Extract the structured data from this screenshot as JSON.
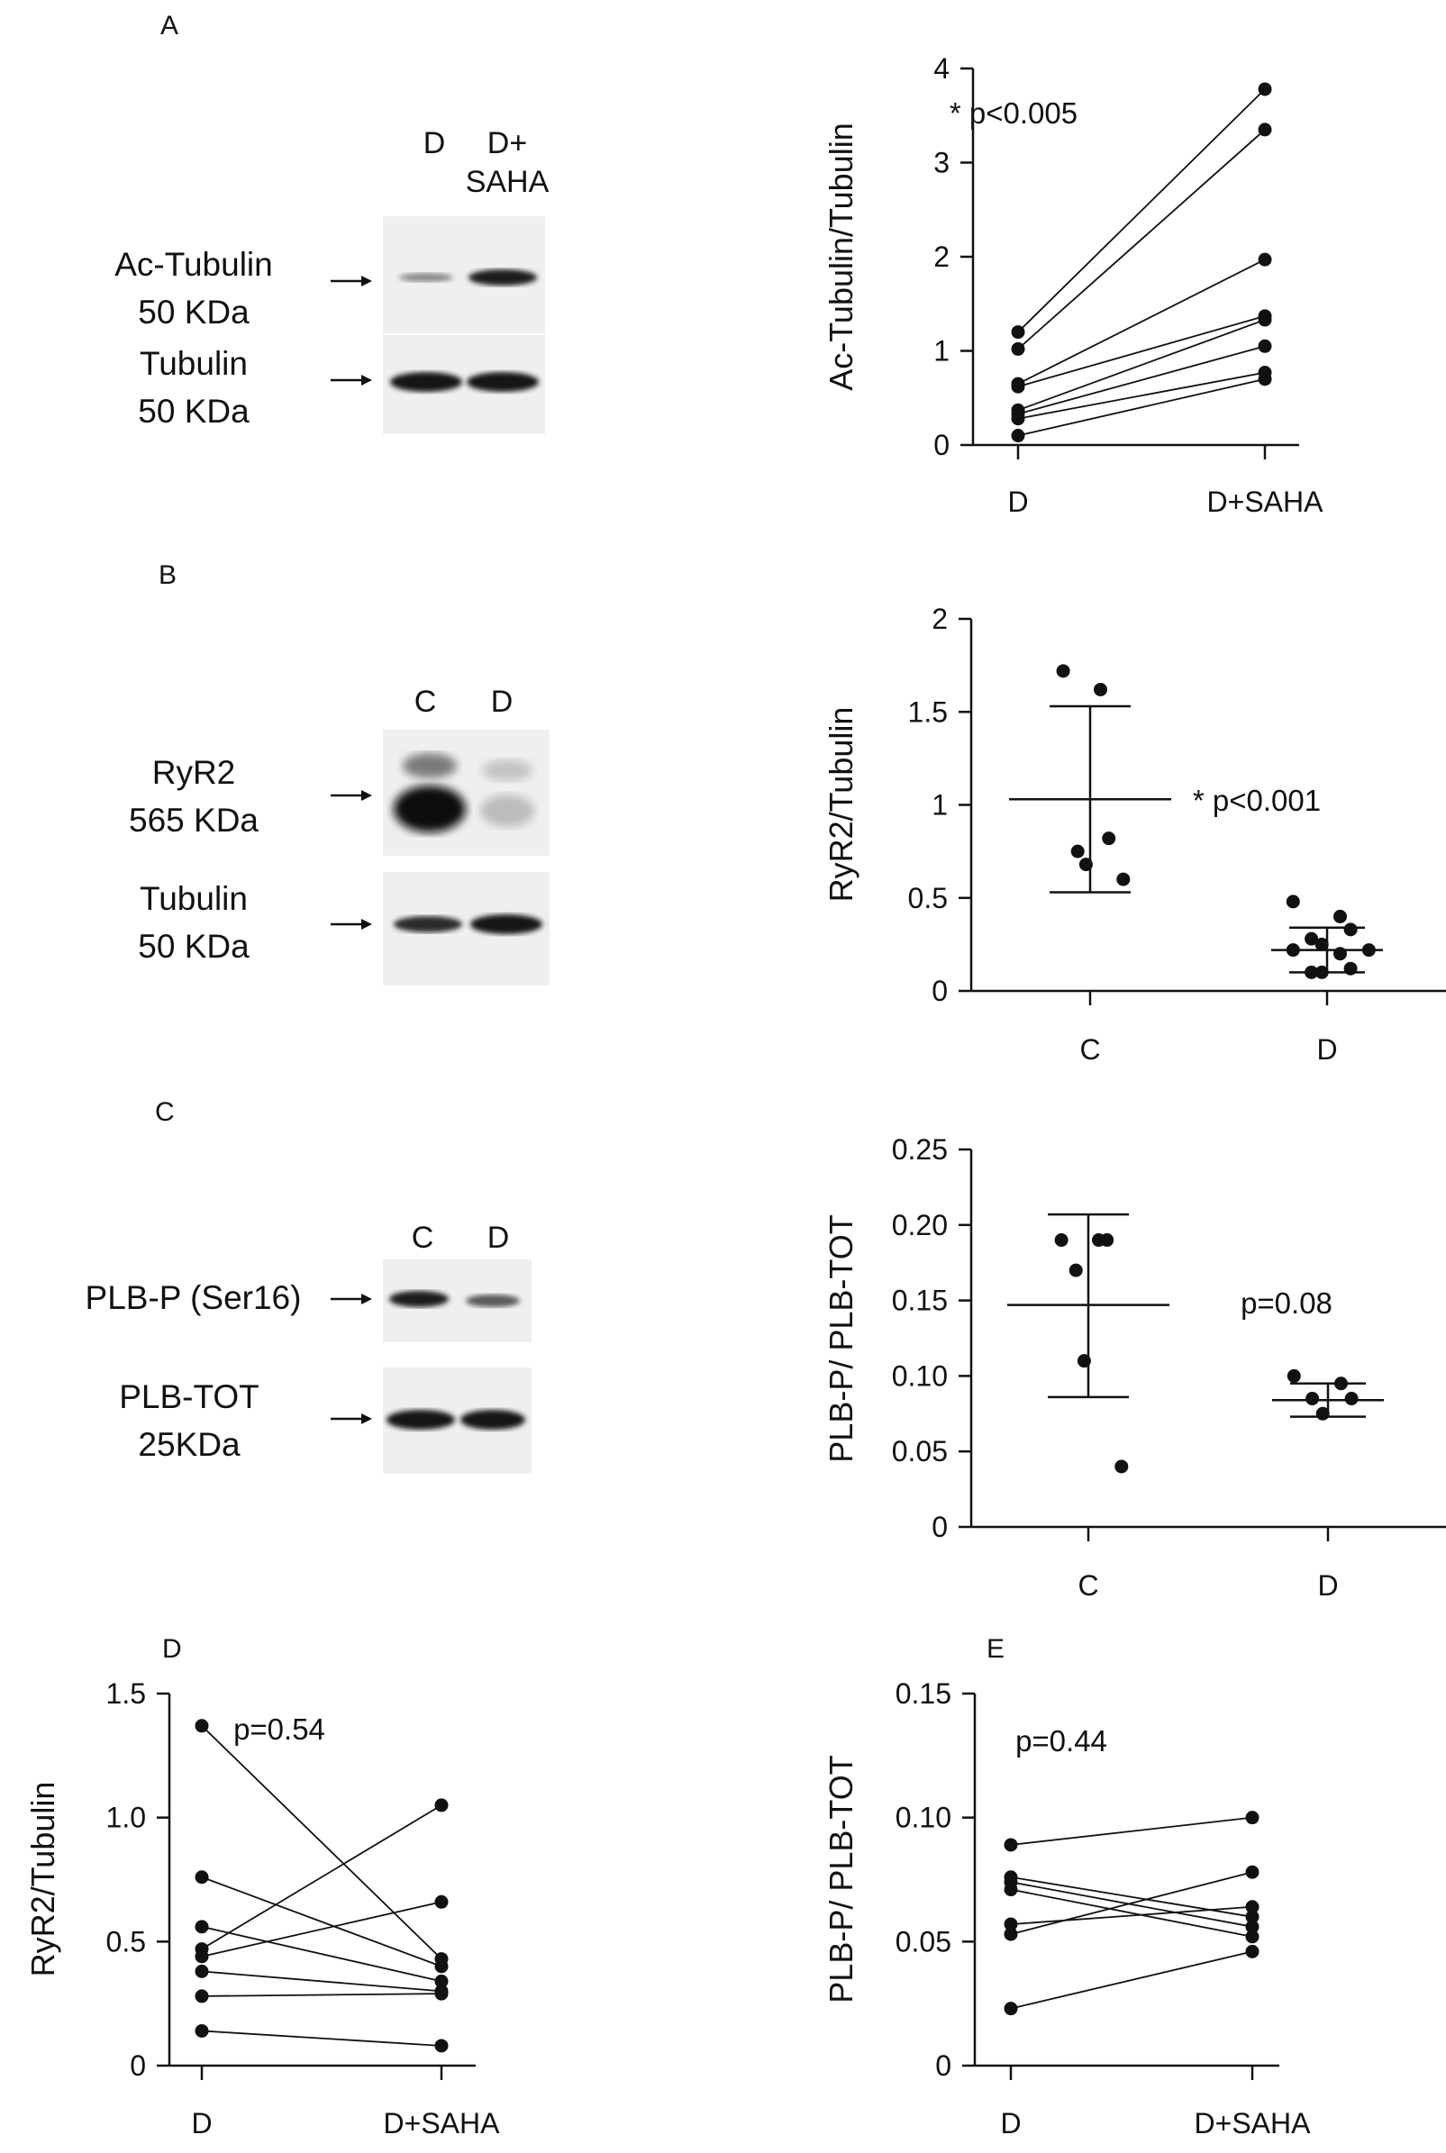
{
  "figure": {
    "panels": {
      "A": {
        "letter": "A",
        "blot": {
          "lanes": [
            "D",
            "D+\nSAHA"
          ],
          "bands": [
            {
              "label": "Ac-Tubulin\n50 KDa"
            },
            {
              "label": "Tubulin\n50 KDa"
            }
          ]
        }
      },
      "B": {
        "letter": "B",
        "blot": {
          "lanes": [
            "C",
            "D"
          ],
          "bands": [
            {
              "label": "RyR2\n565 KDa"
            },
            {
              "label": "Tubulin\n50 KDa"
            }
          ]
        }
      },
      "C": {
        "letter": "C",
        "blot": {
          "lanes": [
            "C",
            "D"
          ],
          "bands": [
            {
              "label": "PLB-P (Ser16)"
            },
            {
              "label": "PLB-TOT\n25KDa"
            }
          ]
        }
      },
      "D": {
        "letter": "D"
      },
      "E": {
        "letter": "E"
      }
    }
  },
  "chart_data": [
    {
      "id": "A",
      "type": "scatter",
      "style": "paired",
      "title": "",
      "ylabel": "Ac-Tubulin/Tubulin",
      "xlabel": "",
      "categories": [
        "D",
        "D+SAHA"
      ],
      "ylim": [
        0,
        4
      ],
      "yticks": [
        0,
        1,
        2,
        3,
        4
      ],
      "ytick_labels": [
        "0",
        "1",
        "2",
        "3",
        "4"
      ],
      "annotation": "* p<0.005",
      "pairs": [
        [
          1.2,
          3.78
        ],
        [
          1.02,
          3.35
        ],
        [
          0.65,
          1.97
        ],
        [
          0.62,
          1.37
        ],
        [
          0.37,
          1.33
        ],
        [
          0.33,
          1.05
        ],
        [
          0.28,
          0.77
        ],
        [
          0.1,
          0.7
        ]
      ]
    },
    {
      "id": "B",
      "type": "scatter",
      "style": "mean-sd",
      "title": "",
      "ylabel": "RyR2/Tubulin",
      "xlabel": "",
      "categories": [
        "C",
        "D"
      ],
      "ylim": [
        0,
        2
      ],
      "yticks": [
        0,
        0.5,
        1,
        1.5,
        2
      ],
      "ytick_labels": [
        "0",
        "0.5",
        "1",
        "1.5",
        "2"
      ],
      "annotation": "* p<0.001",
      "groups": [
        {
          "name": "C",
          "values": [
            1.72,
            1.62,
            0.82,
            0.75,
            0.68,
            0.6
          ],
          "mean": 1.03,
          "sd_low": 0.53,
          "sd_high": 1.53
        },
        {
          "name": "D",
          "values": [
            0.48,
            0.4,
            0.33,
            0.28,
            0.25,
            0.22,
            0.22,
            0.2,
            0.12,
            0.1,
            0.1
          ],
          "mean": 0.22,
          "sd_low": 0.1,
          "sd_high": 0.34
        }
      ]
    },
    {
      "id": "C",
      "type": "scatter",
      "style": "mean-sd",
      "title": "",
      "ylabel": "PLB-P/ PLB-TOT",
      "xlabel": "",
      "categories": [
        "C",
        "D"
      ],
      "ylim": [
        0,
        0.25
      ],
      "yticks": [
        0,
        0.05,
        0.1,
        0.15,
        0.2,
        0.25
      ],
      "ytick_labels": [
        "0",
        "0.05",
        "0.10",
        "0.15",
        "0.20",
        "0.25"
      ],
      "annotation": "p=0.08",
      "groups": [
        {
          "name": "C",
          "values": [
            0.19,
            0.19,
            0.19,
            0.17,
            0.11,
            0.04
          ],
          "mean": 0.147,
          "sd_low": 0.086,
          "sd_high": 0.207
        },
        {
          "name": "D",
          "values": [
            0.1,
            0.095,
            0.085,
            0.085,
            0.075
          ],
          "mean": 0.084,
          "sd_low": 0.073,
          "sd_high": 0.095
        }
      ]
    },
    {
      "id": "D",
      "type": "scatter",
      "style": "paired",
      "title": "",
      "ylabel": "RyR2/Tubulin",
      "xlabel": "",
      "categories": [
        "D",
        "D+SAHA"
      ],
      "ylim": [
        0,
        1.5
      ],
      "yticks": [
        0,
        0.5,
        1.0,
        1.5
      ],
      "ytick_labels": [
        "0",
        "0.5",
        "1.0",
        "1.5"
      ],
      "annotation": "p=0.54",
      "pairs": [
        [
          1.37,
          0.43
        ],
        [
          0.76,
          0.4
        ],
        [
          0.56,
          0.34
        ],
        [
          0.47,
          1.05
        ],
        [
          0.44,
          0.66
        ],
        [
          0.38,
          0.3
        ],
        [
          0.28,
          0.29
        ],
        [
          0.14,
          0.08
        ]
      ]
    },
    {
      "id": "E",
      "type": "scatter",
      "style": "paired",
      "title": "",
      "ylabel": "PLB-P/ PLB-TOT",
      "xlabel": "",
      "categories": [
        "D",
        "D+SAHA"
      ],
      "ylim": [
        0,
        0.15
      ],
      "yticks": [
        0,
        0.05,
        0.1,
        0.15
      ],
      "ytick_labels": [
        "0",
        "0.05",
        "0.10",
        "0.15"
      ],
      "annotation": "p=0.44",
      "pairs": [
        [
          0.089,
          0.1
        ],
        [
          0.076,
          0.06
        ],
        [
          0.074,
          0.056
        ],
        [
          0.071,
          0.052
        ],
        [
          0.057,
          0.064
        ],
        [
          0.053,
          0.078
        ],
        [
          0.023,
          0.046
        ]
      ]
    }
  ]
}
